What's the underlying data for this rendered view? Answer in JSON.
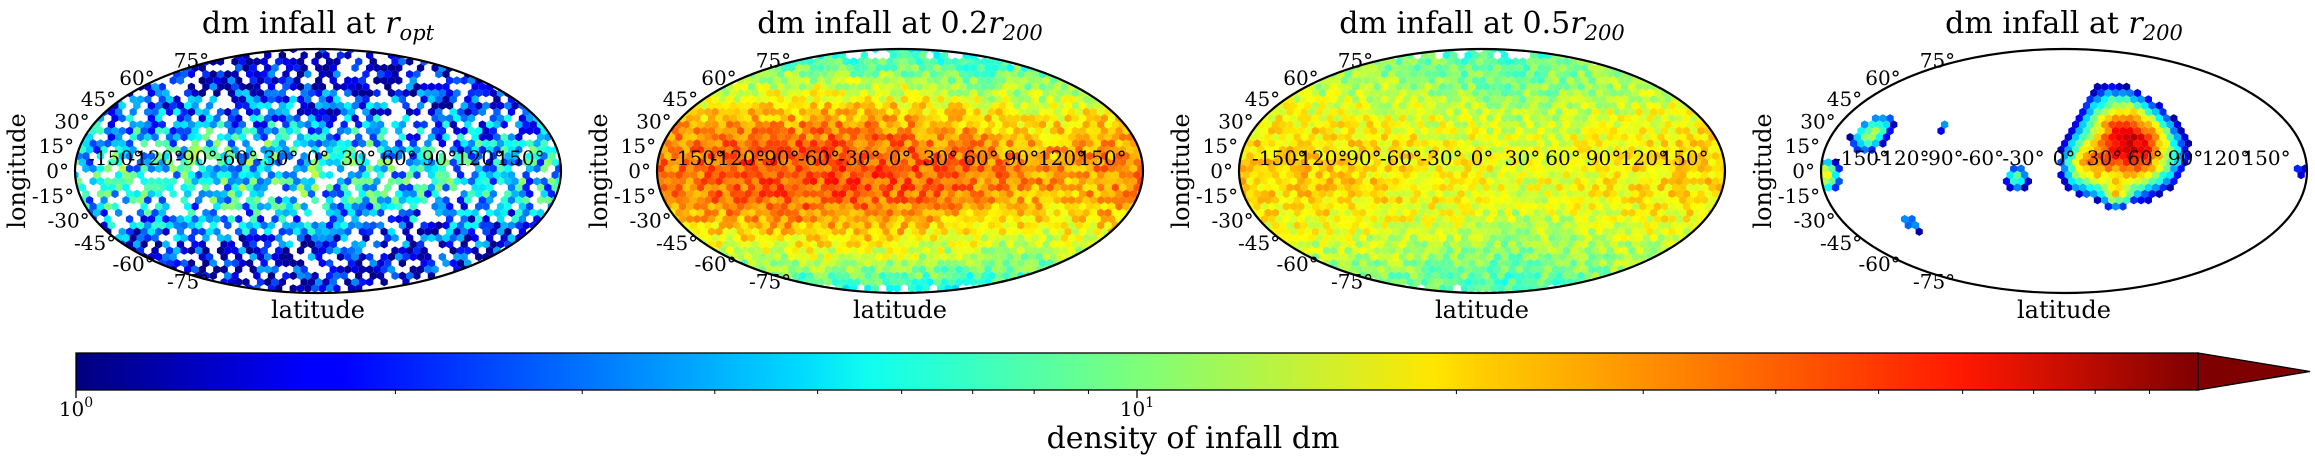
{
  "figure": {
    "colorbar": {
      "label": "density of infall dm",
      "scale": "log",
      "ticks": [
        {
          "value": 1,
          "label": "10",
          "exp": "0"
        },
        {
          "value": 10,
          "label": "10",
          "exp": "1"
        }
      ],
      "range": [
        1,
        100
      ],
      "extend": "max",
      "colormap": "jet"
    }
  },
  "chart_data": [
    {
      "type": "heatmap",
      "projection": "mollweide",
      "title": "dm infall at r_opt",
      "title_parts": {
        "prefix": "dm infall at ",
        "coef": "",
        "var": "r",
        "sub": "opt"
      },
      "xlabel": "latitude",
      "ylabel": "longitude",
      "x_ticks": [
        "-150°",
        "-120°",
        "-90°",
        "-60°",
        "-30°",
        "0°",
        "30°",
        "60°",
        "90°",
        "120°",
        "150°"
      ],
      "y_ticks": [
        "75°",
        "60°",
        "45°",
        "30°",
        "15°",
        "0°",
        "-15°",
        "-30°",
        "-45°",
        "-60°",
        "-75°"
      ],
      "grid": false,
      "description_of_values": "sparse, noisy; densities mostly 1-10, higher (~10-30) near equator left of centre",
      "density_model": {
        "base": 1.3,
        "peak": 6,
        "peak_lon": -60,
        "equator_width": 30,
        "coverage": 0.75,
        "noise": 0.9
      }
    },
    {
      "type": "heatmap",
      "projection": "mollweide",
      "title": "dm infall at 0.2r_200",
      "title_parts": {
        "prefix": "dm infall at ",
        "coef": "0.2",
        "var": "r",
        "sub": "200"
      },
      "xlabel": "latitude",
      "ylabel": "longitude",
      "x_ticks": [
        "-150°",
        "-120°",
        "-90°",
        "-60°",
        "-30°",
        "0°",
        "30°",
        "60°",
        "90°",
        "120°",
        "150°"
      ],
      "y_ticks": [
        "75°",
        "60°",
        "45°",
        "30°",
        "15°",
        "0°",
        "-15°",
        "-30°",
        "-45°",
        "-60°",
        "-75°"
      ],
      "grid": false,
      "description_of_values": "full coverage; equatorial band ~20-60, peak near -60° longitude, poles ~3-5",
      "density_model": {
        "base": 4,
        "peak": 40,
        "peak_lon": -60,
        "equator_width": 40,
        "coverage": 1.0,
        "noise": 0.35
      }
    },
    {
      "type": "heatmap",
      "projection": "mollweide",
      "title": "dm infall at 0.5r_200",
      "title_parts": {
        "prefix": "dm infall at ",
        "coef": "0.5",
        "var": "r",
        "sub": "200"
      },
      "xlabel": "latitude",
      "ylabel": "longitude",
      "x_ticks": [
        "-150°",
        "-120°",
        "-90°",
        "-60°",
        "-30°",
        "0°",
        "30°",
        "60°",
        "90°",
        "120°",
        "150°"
      ],
      "y_ticks": [
        "75°",
        "60°",
        "45°",
        "30°",
        "15°",
        "0°",
        "-15°",
        "-30°",
        "-45°",
        "-60°",
        "-75°"
      ],
      "grid": false,
      "description_of_values": "full coverage; broad band ~15-25, orange on left, green/cyan near poles",
      "density_model": {
        "base": 5,
        "peak": 22,
        "peak_lon": -150,
        "equator_width": 50,
        "coverage": 1.0,
        "noise": 0.3
      }
    },
    {
      "type": "heatmap",
      "projection": "mollweide",
      "title": "dm infall at r_200",
      "title_parts": {
        "prefix": "dm infall at ",
        "coef": "",
        "var": "r",
        "sub": "200"
      },
      "xlabel": "latitude",
      "ylabel": "longitude",
      "x_ticks": [
        "-150°",
        "-120°",
        "-90°",
        "-60°",
        "-30°",
        "0°",
        "30°",
        "60°",
        "90°",
        "120°",
        "150°"
      ],
      "y_ticks": [
        "75°",
        "60°",
        "45°",
        "30°",
        "15°",
        "0°",
        "-15°",
        "-30°",
        "-45°",
        "-60°",
        "-75°"
      ],
      "grid": false,
      "description_of_values": "sparse clumps; main clump near lon 45°, lat 20° reaching >60; smaller clumps elsewhere",
      "clumps": [
        {
          "lon": 50,
          "lat": 20,
          "size": 22,
          "peak": 70
        },
        {
          "lon": 20,
          "lat": 5,
          "size": 14,
          "peak": 25
        },
        {
          "lon": 40,
          "lat": -15,
          "size": 8,
          "peak": 20
        },
        {
          "lon": -35,
          "lat": -5,
          "size": 7,
          "peak": 8
        },
        {
          "lon": -150,
          "lat": 28,
          "size": 10,
          "peak": 12
        },
        {
          "lon": -178,
          "lat": -3,
          "size": 8,
          "peak": 20
        },
        {
          "lon": -125,
          "lat": -38,
          "size": 6,
          "peak": 5
        },
        {
          "lon": -95,
          "lat": 33,
          "size": 4,
          "peak": 4
        },
        {
          "lon": 175,
          "lat": 0,
          "size": 4,
          "peak": 3
        }
      ]
    }
  ]
}
